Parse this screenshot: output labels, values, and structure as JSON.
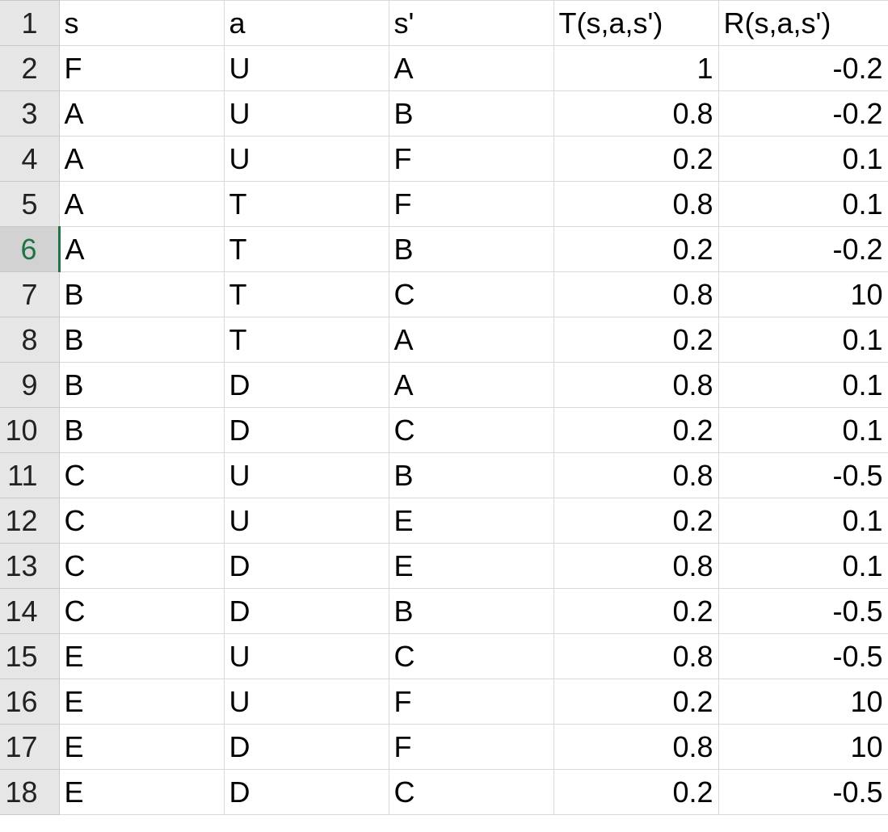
{
  "active_row": 6,
  "colors": {
    "row_header_bg": "#e6e6e6",
    "active_header_bg": "#d2d2d2",
    "accent": "#217346",
    "gridline": "#d9d9d9"
  },
  "columns": [
    {
      "key": "s",
      "align": "left"
    },
    {
      "key": "a",
      "align": "left"
    },
    {
      "key": "s_prime",
      "align": "left"
    },
    {
      "key": "T",
      "align": "right"
    },
    {
      "key": "R",
      "align": "right"
    }
  ],
  "rows": [
    {
      "row": "1",
      "cells": [
        "s",
        "a",
        "s'",
        "T(s,a,s')",
        "R(s,a,s')"
      ],
      "aligns": [
        "left",
        "left",
        "left",
        "left",
        "left"
      ]
    },
    {
      "row": "2",
      "cells": [
        "F",
        "U",
        "A",
        "1",
        "-0.2"
      ]
    },
    {
      "row": "3",
      "cells": [
        "A",
        "U",
        "B",
        "0.8",
        "-0.2"
      ]
    },
    {
      "row": "4",
      "cells": [
        "A",
        "U",
        "F",
        "0.2",
        "0.1"
      ]
    },
    {
      "row": "5",
      "cells": [
        "A",
        "T",
        "F",
        "0.8",
        "0.1"
      ]
    },
    {
      "row": "6",
      "cells": [
        "A",
        "T",
        "B",
        "0.2",
        "-0.2"
      ]
    },
    {
      "row": "7",
      "cells": [
        "B",
        "T",
        "C",
        "0.8",
        "10"
      ]
    },
    {
      "row": "8",
      "cells": [
        "B",
        "T",
        "A",
        "0.2",
        "0.1"
      ]
    },
    {
      "row": "9",
      "cells": [
        "B",
        "D",
        "A",
        "0.8",
        "0.1"
      ]
    },
    {
      "row": "10",
      "cells": [
        "B",
        "D",
        "C",
        "0.2",
        "0.1"
      ]
    },
    {
      "row": "11",
      "cells": [
        "C",
        "U",
        "B",
        "0.8",
        "-0.5"
      ]
    },
    {
      "row": "12",
      "cells": [
        "C",
        "U",
        "E",
        "0.2",
        "0.1"
      ]
    },
    {
      "row": "13",
      "cells": [
        "C",
        "D",
        "E",
        "0.8",
        "0.1"
      ]
    },
    {
      "row": "14",
      "cells": [
        "C",
        "D",
        "B",
        "0.2",
        "-0.5"
      ]
    },
    {
      "row": "15",
      "cells": [
        "E",
        "U",
        "C",
        "0.8",
        "-0.5"
      ]
    },
    {
      "row": "16",
      "cells": [
        "E",
        "U",
        "F",
        "0.2",
        "10"
      ]
    },
    {
      "row": "17",
      "cells": [
        "E",
        "D",
        "F",
        "0.8",
        "10"
      ]
    },
    {
      "row": "18",
      "cells": [
        "E",
        "D",
        "C",
        "0.2",
        "-0.5"
      ]
    }
  ]
}
